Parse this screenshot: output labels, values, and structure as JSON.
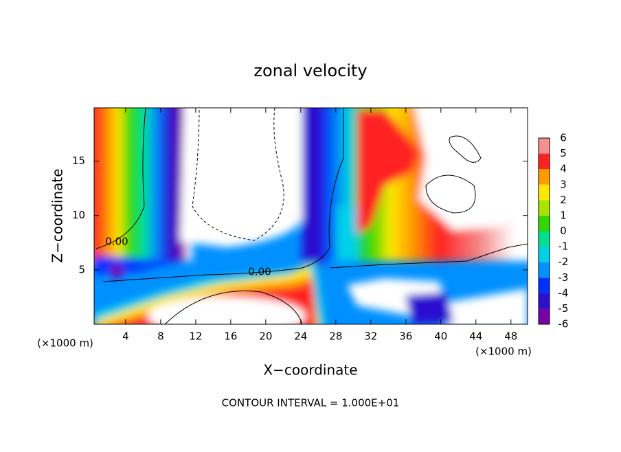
{
  "chart_data": {
    "type": "contour",
    "title": "zonal velocity",
    "x_label": "X−coordinate",
    "y_label": "Z−coordinate",
    "x_unit_left": "(×1000 m)",
    "x_unit_right": "(×1000 m)",
    "footnote": "CONTOUR INTERVAL = 1.000E+01",
    "contour_labels": [
      "0.00",
      "0.00"
    ],
    "xlim": [
      0.4,
      49.9
    ],
    "ylim": [
      0,
      19.9
    ],
    "xticks": [
      4,
      8,
      12,
      16,
      20,
      24,
      28,
      32,
      36,
      40,
      44,
      48
    ],
    "yticks": [
      5,
      10,
      15
    ],
    "colorbar": {
      "levels": [
        -6,
        -5,
        -4,
        -3,
        -2,
        -1,
        0,
        1,
        2,
        3,
        4,
        5,
        6
      ],
      "colors": [
        "#7a00a8",
        "#2a10d0",
        "#0030ff",
        "#0090ff",
        "#00d0e8",
        "#00e090",
        "#30d800",
        "#a8e400",
        "#ffe800",
        "#ff9a00",
        "#ff2020",
        "#f59090"
      ]
    }
  }
}
